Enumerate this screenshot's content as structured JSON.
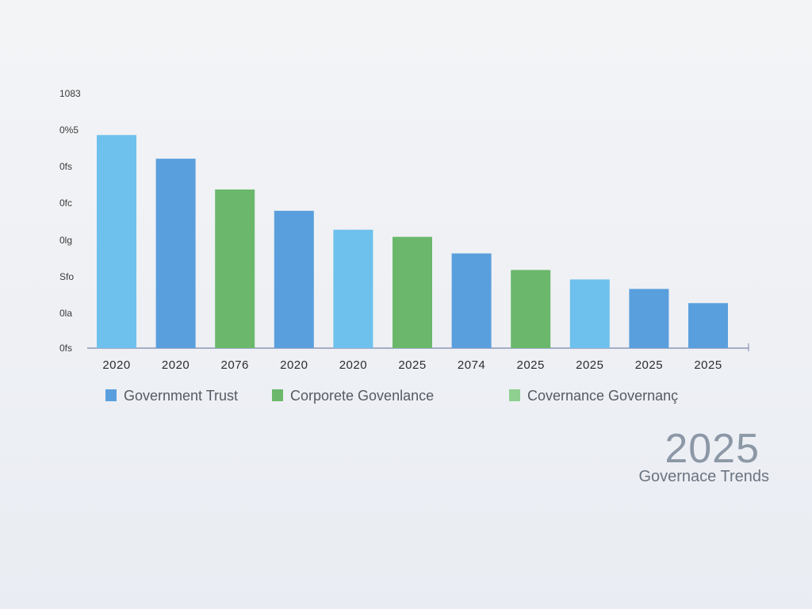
{
  "chart_data": {
    "type": "bar",
    "categories": [
      "2020",
      "2020",
      "2076",
      "2020",
      "2020",
      "2025",
      "2074",
      "2025",
      "2025",
      "2025",
      "2025"
    ],
    "values": [
      0.9,
      0.8,
      0.67,
      0.58,
      0.5,
      0.47,
      0.4,
      0.33,
      0.29,
      0.25,
      0.19
    ],
    "bar_series": [
      0,
      0,
      1,
      0,
      0,
      1,
      0,
      1,
      0,
      0,
      0
    ],
    "bar_colors": [
      "#6ec1ec",
      "#5a9fdd",
      "#6bb86c",
      "#5a9fdd",
      "#6ec1ec",
      "#6bb86c",
      "#5a9fdd",
      "#6bb86c",
      "#6ec1ec",
      "#5a9fdd",
      "#5a9fdd"
    ],
    "y_tick_labels": [
      "0fs",
      "0la",
      "Sfo",
      "0lg",
      "0fc",
      "0fs",
      "0%5",
      "1083"
    ],
    "ylim": [
      0,
      1.05
    ],
    "grid": false,
    "legend": [
      {
        "name": "Government Trust",
        "color": "#5a9fdd"
      },
      {
        "name": "Corporete Govenlance",
        "color": "#6bb86c"
      },
      {
        "name": "Covernance Governanç",
        "color": "#8fcf8f"
      }
    ],
    "legend_position": "bottom"
  },
  "annotation": {
    "year": "2025",
    "subtitle": "Governace Trends"
  }
}
